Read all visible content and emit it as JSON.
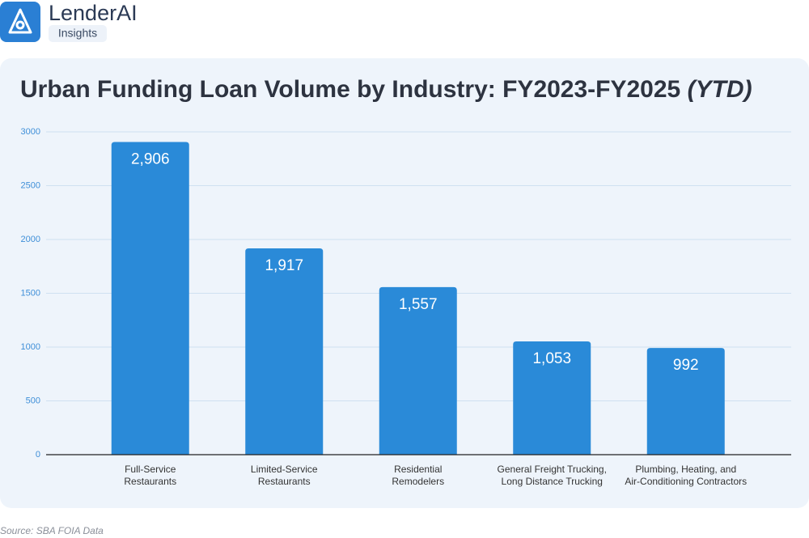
{
  "header": {
    "brand": "LenderAI",
    "tag": "Insights"
  },
  "chart_data": {
    "type": "bar",
    "title": "Urban Funding Loan Volume by Industry: FY2023-FY2025",
    "title_suffix": "(YTD)",
    "categories": [
      [
        "Full-Service",
        "Restaurants"
      ],
      [
        "Limited-Service",
        "Restaurants"
      ],
      [
        "Residential",
        "Remodelers"
      ],
      [
        "General Freight Trucking,",
        "Long Distance Trucking"
      ],
      [
        "Plumbing, Heating, and",
        "Air-Conditioning Contractors"
      ]
    ],
    "values": [
      2906,
      1917,
      1557,
      1053,
      992
    ],
    "value_labels": [
      "2,906",
      "1,917",
      "1,557",
      "1,053",
      "992"
    ],
    "color": "#2a8ad8",
    "ylim": [
      0,
      3000
    ],
    "yticks": [
      0,
      500,
      1000,
      1500,
      2000,
      2500,
      3000
    ],
    "grid": true
  },
  "footer": {
    "source": "Source: SBA FOIA Data"
  }
}
